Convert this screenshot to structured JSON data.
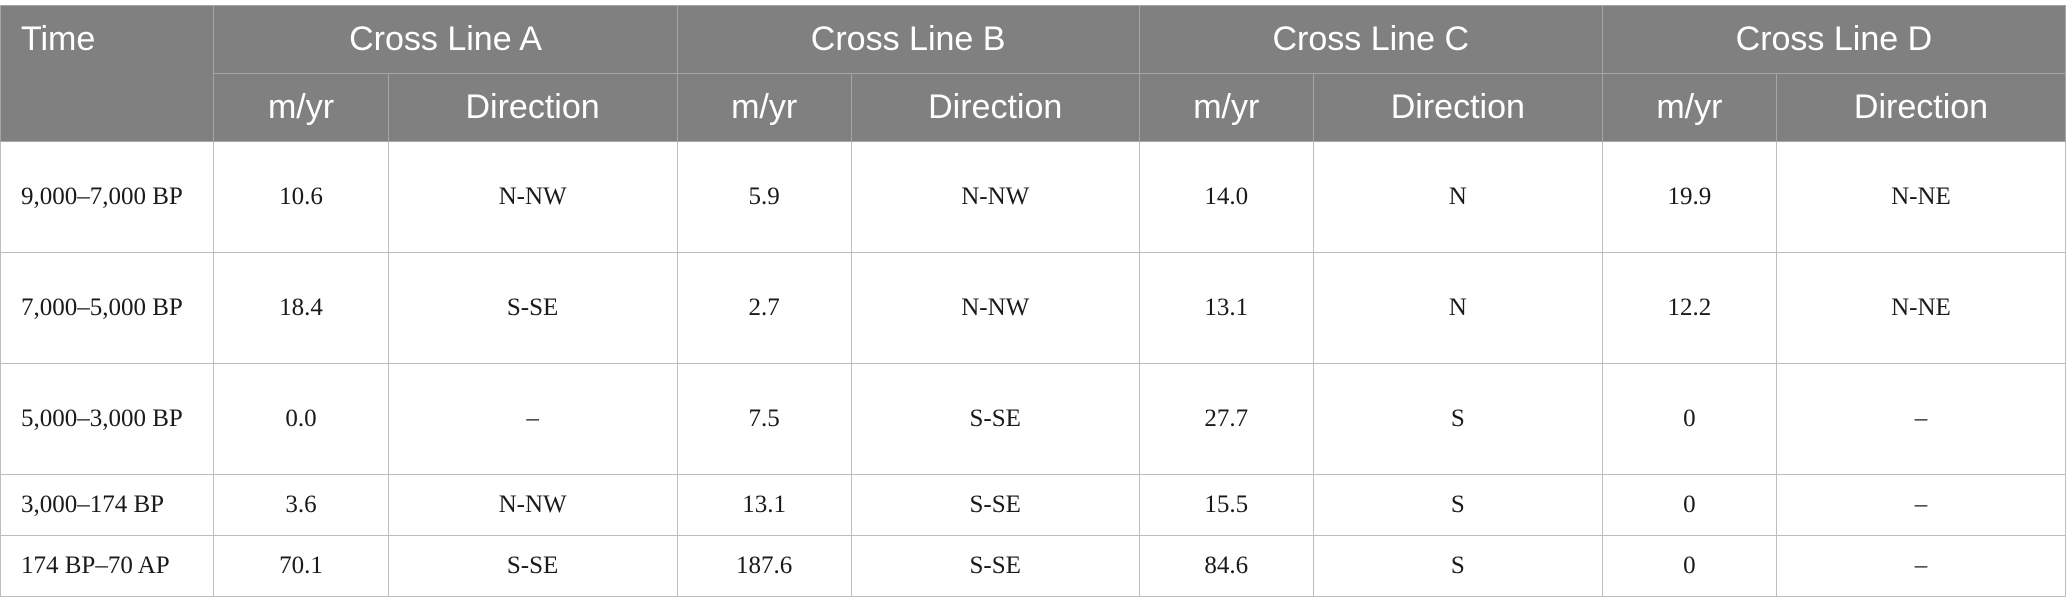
{
  "table": {
    "time_header": "Time",
    "groups": [
      "Cross Line A",
      "Cross Line B",
      "Cross Line C",
      "Cross Line D"
    ],
    "sub_headers": [
      "m/yr",
      "Direction"
    ],
    "rows": [
      {
        "time": "9,000–7,000 BP",
        "cells": [
          "10.6",
          "N-NW",
          "5.9",
          "N-NW",
          "14.0",
          "N",
          "19.9",
          "N-NE"
        ]
      },
      {
        "time": "7,000–5,000 BP",
        "cells": [
          "18.4",
          "S-SE",
          "2.7",
          "N-NW",
          "13.1",
          "N",
          "12.2",
          "N-NE"
        ]
      },
      {
        "time": "5,000–3,000 BP",
        "cells": [
          "0.0",
          "–",
          "7.5",
          "S-SE",
          "27.7",
          "S",
          "0",
          "–"
        ]
      },
      {
        "time": "3,000–174 BP",
        "cells": [
          "3.6",
          "N-NW",
          "13.1",
          "S-SE",
          "15.5",
          "S",
          "0",
          "–"
        ]
      },
      {
        "time": "174 BP–70 AP",
        "cells": [
          "70.1",
          "S-SE",
          "187.6",
          "S-SE",
          "84.6",
          "S",
          "0",
          "–"
        ]
      }
    ]
  }
}
